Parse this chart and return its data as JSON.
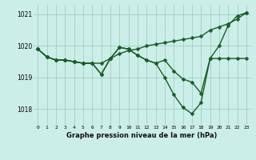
{
  "title": "Graphe pression niveau de la mer (hPa)",
  "bg_color": "#cceee8",
  "grid_color": "#99ccbb",
  "line_color": "#1a5c2a",
  "line_width": 1.0,
  "marker": "D",
  "marker_size": 2.5,
  "ylim": [
    1017.5,
    1021.3
  ],
  "yticks": [
    1018,
    1019,
    1020,
    1021
  ],
  "xticks": [
    0,
    1,
    2,
    3,
    4,
    5,
    6,
    7,
    8,
    9,
    10,
    11,
    12,
    13,
    14,
    15,
    16,
    17,
    18,
    19,
    20,
    21,
    22,
    23
  ],
  "series": [
    [
      1019.9,
      1019.65,
      1019.55,
      1019.55,
      1019.5,
      1019.45,
      1019.45,
      1019.45,
      1019.6,
      1019.75,
      1019.85,
      1019.9,
      1020.0,
      1020.05,
      1020.1,
      1020.15,
      1020.2,
      1020.25,
      1020.3,
      1020.5,
      1020.6,
      1020.7,
      1020.85,
      1021.05
    ],
    [
      1019.9,
      1019.65,
      1019.55,
      1019.55,
      1019.5,
      1019.45,
      1019.45,
      1019.1,
      1019.6,
      1019.95,
      1019.9,
      1019.7,
      1019.55,
      1019.45,
      1019.55,
      1019.2,
      1018.95,
      1018.85,
      1018.5,
      1019.6,
      1019.6,
      1019.6,
      1019.6,
      1019.6
    ],
    [
      1019.9,
      1019.65,
      1019.55,
      1019.55,
      1019.5,
      1019.45,
      1019.45,
      1019.1,
      1019.6,
      1019.95,
      1019.9,
      1019.7,
      1019.55,
      1019.45,
      1019.0,
      1018.45,
      1018.05,
      1017.85,
      1018.2,
      1019.6,
      1020.0,
      1020.65,
      1020.95,
      1021.05
    ]
  ]
}
